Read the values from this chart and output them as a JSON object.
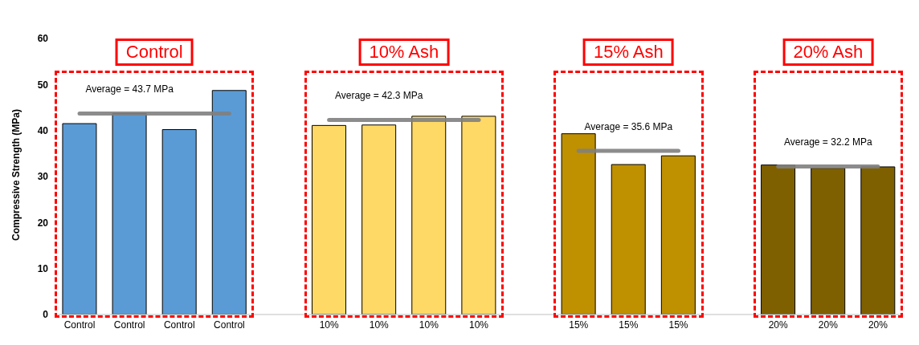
{
  "chart_data": {
    "type": "bar",
    "ylabel": "Compressive Strength (MPa)",
    "categories": [
      "Control",
      "Control",
      "Control",
      "Control",
      null,
      "10%",
      "10%",
      "10%",
      "10%",
      null,
      "15%",
      "15%",
      "15%",
      null,
      "20%",
      "20%",
      "20%"
    ],
    "series": [
      {
        "colors": [
          "#5b9bd5",
          "#5b9bd5",
          "#5b9bd5",
          "#5b9bd5",
          null,
          "#ffd966",
          "#ffd966",
          "#ffd966",
          "#ffd966",
          null,
          "#bf9000",
          "#bf9000",
          "#bf9000",
          null,
          "#7f6000",
          "#7f6000",
          "#7f6000"
        ],
        "values": [
          41.5,
          43.7,
          40.2,
          48.7,
          null,
          41.1,
          41.2,
          43.1,
          43.1,
          null,
          39.3,
          32.6,
          34.5,
          null,
          32.5,
          31.8,
          32.1
        ]
      },
      {
        "type": "line",
        "name": "Average = 43.7 MPa",
        "color": "#7f7f7f",
        "values": [
          43.7,
          43.7,
          43.7,
          43.7,
          null,
          null,
          null,
          null,
          null,
          null,
          null,
          null,
          null,
          null,
          null,
          null,
          null
        ]
      },
      {
        "type": "line",
        "name": "Average = 42.3 MPa",
        "color": "#7f7f7f",
        "values": [
          null,
          null,
          null,
          null,
          null,
          42.3,
          42.3,
          42.3,
          42.3,
          null,
          null,
          null,
          null,
          null,
          null,
          null,
          null
        ]
      },
      {
        "type": "line",
        "name": "Average = 35.6 MPa",
        "color": "#7f7f7f",
        "values": [
          null,
          null,
          null,
          null,
          null,
          null,
          null,
          null,
          null,
          null,
          35.6,
          35.6,
          35.6,
          null,
          null,
          null,
          null
        ]
      },
      {
        "type": "line",
        "name": "Average = 32.2 MPa",
        "color": "#7f7f7f",
        "values": [
          null,
          null,
          null,
          null,
          null,
          null,
          null,
          null,
          null,
          null,
          null,
          null,
          null,
          null,
          32.2,
          32.2,
          32.2
        ]
      }
    ],
    "annotations": [
      "Control",
      "10% Ash",
      "15% Ash",
      "20% Ash"
    ],
    "ylim": [
      0,
      60
    ],
    "yticks": [
      0,
      10,
      20,
      30,
      40,
      50,
      60
    ]
  }
}
